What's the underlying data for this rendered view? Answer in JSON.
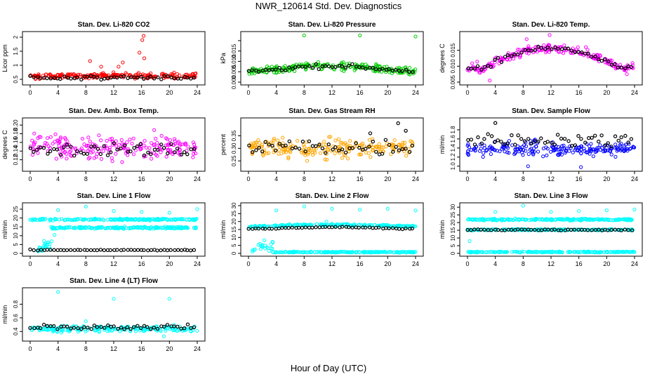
{
  "page": {
    "title": "NWR_120614  Std. Dev. Diagnostics",
    "x_axis_title": "Hour of Day (UTC)"
  },
  "colors": {
    "red": "#ff0000",
    "green": "#00cc00",
    "magenta": "#ff00ff",
    "orange": "#ffa500",
    "blue": "#0000ff",
    "cyan": "#00ffff",
    "black": "#000000"
  },
  "chart_data": [
    {
      "type": "scatter",
      "title": "Stan. Dev. Li-820 CO2",
      "ylabel": "Licor ppm",
      "xlabel": "",
      "xlim": [
        0,
        24
      ],
      "ylim": [
        0.4,
        2.1
      ],
      "x_ticks": [
        "0",
        "4",
        "8",
        "12",
        "16",
        "20",
        "24"
      ],
      "y_ticks": [
        0.5,
        1.0,
        1.5,
        2.0
      ],
      "y_tick_labels": [
        "0.5",
        "1",
        "1.5",
        "2"
      ],
      "series": [
        {
          "name": "all",
          "color": "#ff0000",
          "baseline": "flat",
          "level": 0.62,
          "noise": 0.08,
          "outliers": [
            [
              8.6,
              1.15
            ],
            [
              10.2,
              0.95
            ],
            [
              13.3,
              1.1
            ],
            [
              15.7,
              1.45
            ],
            [
              16.1,
              1.9
            ],
            [
              16.3,
              2.05
            ],
            [
              16.4,
              1.25
            ],
            [
              12.7,
              0.95
            ]
          ]
        },
        {
          "name": "hourly",
          "color": "#000000",
          "baseline": "flat",
          "level": 0.56,
          "noise": 0.05
        }
      ]
    },
    {
      "type": "scatter",
      "title": "Stan. Dev. Li-820 Pressure",
      "ylabel": "kPa",
      "xlabel": "",
      "xlim": [
        0,
        24
      ],
      "ylim": [
        0,
        0.023
      ],
      "x_ticks": [
        "0",
        "4",
        "8",
        "12",
        "16",
        "20",
        "24"
      ],
      "y_ticks": [
        0,
        0.005,
        0.01,
        0.015,
        0.02
      ],
      "y_tick_labels": [
        "0.000",
        "0.005",
        "0.010",
        "0.015",
        ""
      ],
      "series": [
        {
          "name": "all",
          "color": "#00cc00",
          "baseline": "hump",
          "level": 0.0055,
          "amp": 0.0022,
          "noise": 0.0016,
          "outliers": [
            [
              8.0,
              0.0225
            ],
            [
              16.0,
              0.0225
            ],
            [
              24.0,
              0.022
            ]
          ]
        },
        {
          "name": "hourly",
          "color": "#000000",
          "baseline": "hump",
          "level": 0.0055,
          "amp": 0.0022,
          "noise": 0.0008
        }
      ]
    },
    {
      "type": "scatter",
      "title": "Stan. Dev. Li-820 Temp.",
      "ylabel": "degrees C",
      "xlabel": "",
      "xlim": [
        0,
        24
      ],
      "ylim": [
        0.005,
        0.02
      ],
      "x_ticks": [
        "0",
        "4",
        "8",
        "12",
        "16",
        "20",
        "24"
      ],
      "y_ticks": [
        0.005,
        0.01,
        0.015
      ],
      "y_tick_labels": [
        "0.005",
        "0.010",
        "0.015"
      ],
      "series": [
        {
          "name": "all",
          "color": "#ff00ff",
          "baseline": "hump",
          "level": 0.0095,
          "amp": 0.0062,
          "noise": 0.0011,
          "outliers": [
            [
              3.2,
              0.0055
            ],
            [
              8.5,
              0.0185
            ],
            [
              11.8,
              0.0198
            ],
            [
              17.0,
              0.016
            ],
            [
              22.9,
              0.0075
            ]
          ]
        },
        {
          "name": "hourly",
          "color": "#000000",
          "baseline": "hump",
          "level": 0.0095,
          "amp": 0.0062,
          "noise": 0.0007
        }
      ]
    },
    {
      "type": "scatter",
      "title": "Stan. Dev. Amb. Box Temp.",
      "ylabel": "degrees C",
      "xlabel": "",
      "xlim": [
        0,
        24
      ],
      "ylim": [
        0.1,
        0.21
      ],
      "x_ticks": [
        "0",
        "4",
        "8",
        "12",
        "16",
        "20",
        "24"
      ],
      "y_ticks": [
        0.12,
        0.14,
        0.16,
        0.18,
        0.2
      ],
      "y_tick_labels": [
        "0.12",
        "0.14",
        "0.16",
        "0.18",
        "0.20"
      ],
      "series": [
        {
          "name": "all",
          "color": "#ff00ff",
          "baseline": "flat",
          "level": 0.148,
          "noise": 0.022
        },
        {
          "name": "hourly",
          "color": "#000000",
          "baseline": "flat",
          "level": 0.143,
          "noise": 0.013
        }
      ]
    },
    {
      "type": "scatter",
      "title": "Stan. Dev. Gas Stream RH",
      "ylabel": "percent",
      "xlabel": "",
      "xlim": [
        0,
        24
      ],
      "ylim": [
        0.22,
        0.41
      ],
      "x_ticks": [
        "0",
        "4",
        "8",
        "12",
        "16",
        "20",
        "24"
      ],
      "y_ticks": [
        0.25,
        0.3,
        0.35
      ],
      "y_tick_labels": [
        "0.25",
        "0.30",
        "0.35"
      ],
      "series": [
        {
          "name": "all",
          "color": "#ffa500",
          "baseline": "flat",
          "level": 0.3,
          "noise": 0.033
        },
        {
          "name": "hourly",
          "color": "#000000",
          "baseline": "flat",
          "level": 0.305,
          "noise": 0.03,
          "outliers": [
            [
              21.5,
              0.4
            ],
            [
              22.6,
              0.37
            ],
            [
              17.5,
              0.36
            ]
          ]
        }
      ]
    },
    {
      "type": "scatter",
      "title": "Stan. Dev. Sample Flow",
      "ylabel": "ml/min",
      "xlabel": "",
      "xlim": [
        0,
        24
      ],
      "ylim": [
        0.95,
        2.0
      ],
      "x_ticks": [
        "0",
        "4",
        "8",
        "12",
        "16",
        "20",
        "24"
      ],
      "y_ticks": [
        1.0,
        1.2,
        1.4,
        1.6,
        1.8
      ],
      "y_tick_labels": [
        "1.0",
        "1.2",
        "1.4",
        "1.6",
        "1.8"
      ],
      "series": [
        {
          "name": "all",
          "color": "#0000ff",
          "baseline": "flat",
          "level": 1.38,
          "noise": 0.12,
          "outliers": [
            [
              8.7,
              1.0
            ],
            [
              16.3,
              0.98
            ]
          ]
        },
        {
          "name": "hourly",
          "color": "#000000",
          "baseline": "flat",
          "level": 1.58,
          "noise": 0.12,
          "outliers": [
            [
              4.0,
              1.95
            ]
          ]
        }
      ]
    },
    {
      "type": "scatter",
      "title": "Stan. Dev. Line 1 Flow",
      "ylabel": "ml/min",
      "xlabel": "",
      "xlim": [
        0,
        24
      ],
      "ylim": [
        0,
        27
      ],
      "x_ticks": [
        "0",
        "4",
        "8",
        "12",
        "16",
        "20",
        "24"
      ],
      "y_ticks": [
        0,
        5,
        10,
        15,
        20,
        25
      ],
      "y_tick_labels": [
        "0",
        "5",
        "10",
        "15",
        "20",
        "25"
      ],
      "series": [
        {
          "name": "band upper",
          "color": "#00ffff",
          "baseline": "flat",
          "level": 19.2,
          "noise": 0.4
        },
        {
          "name": "band middle",
          "color": "#00ffff",
          "baseline": "flat",
          "level": 14.5,
          "noise": 0.45,
          "x_start": 3.0
        },
        {
          "name": "ramp",
          "color": "#00ffff",
          "baseline": "ramp",
          "level": 2.0,
          "noise": 1.2,
          "x_start": 1.0,
          "x_end": 3.2
        },
        {
          "name": "spikes",
          "color": "#00ffff",
          "baseline": "none",
          "outliers": [
            [
              4.0,
              24.5
            ],
            [
              8.0,
              26.5
            ],
            [
              12.0,
              24.0
            ],
            [
              16.0,
              23.5
            ],
            [
              20.0,
              23.0
            ],
            [
              24.0,
              25.0
            ],
            [
              3.5,
              10.5
            ],
            [
              2.0,
              7.0
            ]
          ]
        },
        {
          "name": "hourly",
          "color": "#000000",
          "baseline": "flat",
          "level": 1.9,
          "noise": 0.2
        }
      ]
    },
    {
      "type": "scatter",
      "title": "Stan. Dev. Line 2 Flow",
      "ylabel": "ml/min",
      "xlabel": "",
      "xlim": [
        0,
        24
      ],
      "ylim": [
        0,
        30
      ],
      "x_ticks": [
        "0",
        "4",
        "8",
        "12",
        "16",
        "20",
        "24"
      ],
      "y_ticks": [
        0,
        5,
        10,
        15,
        20,
        25,
        30
      ],
      "y_tick_labels": [
        "0",
        "5",
        "10",
        "15",
        "20",
        "25",
        "30"
      ],
      "series": [
        {
          "name": "band",
          "color": "#00ffff",
          "baseline": "hump",
          "level": 17.0,
          "amp": 1.0,
          "noise": 0.5
        },
        {
          "name": "floor",
          "color": "#00ffff",
          "baseline": "flat",
          "level": 0.8,
          "noise": 0.25,
          "x_start": 3.5
        },
        {
          "name": "ramp",
          "color": "#00ffff",
          "baseline": "ramp",
          "level": 3.0,
          "noise": 2.5,
          "x_start": 0.5,
          "x_end": 3.5
        },
        {
          "name": "spikes",
          "color": "#00ffff",
          "baseline": "none",
          "outliers": [
            [
              4.0,
              27.0
            ],
            [
              8.0,
              29.5
            ],
            [
              12.0,
              28.0
            ],
            [
              16.0,
              27.5
            ],
            [
              20.0,
              28.0
            ],
            [
              24.0,
              27.0
            ],
            [
              11.2,
              20.0
            ]
          ]
        },
        {
          "name": "hourly",
          "color": "#000000",
          "baseline": "hump",
          "level": 15.5,
          "amp": 1.0,
          "noise": 0.35
        }
      ]
    },
    {
      "type": "scatter",
      "title": "Stan. Dev. Line 3 Flow",
      "ylabel": "ml/min",
      "xlabel": "",
      "xlim": [
        0,
        24
      ],
      "ylim": [
        0,
        31
      ],
      "x_ticks": [
        "0",
        "4",
        "8",
        "12",
        "16",
        "20",
        "24"
      ],
      "y_ticks": [
        0,
        5,
        10,
        15,
        20,
        25,
        30
      ],
      "y_tick_labels": [
        "0",
        "5",
        "10",
        "15",
        "20",
        "25",
        "30"
      ],
      "series": [
        {
          "name": "band upper",
          "color": "#00ffff",
          "baseline": "flat",
          "level": 22.0,
          "noise": 0.45
        },
        {
          "name": "band middle",
          "color": "#00ffff",
          "baseline": "flat",
          "level": 15.3,
          "noise": 0.4
        },
        {
          "name": "floor",
          "color": "#00ffff",
          "baseline": "flat",
          "level": 0.9,
          "noise": 0.25
        },
        {
          "name": "spikes",
          "color": "#00ffff",
          "baseline": "none",
          "outliers": [
            [
              0.3,
              8.0
            ],
            [
              4.0,
              27.0
            ],
            [
              8.0,
              31.0
            ],
            [
              12.0,
              27.0
            ],
            [
              16.0,
              27.5
            ],
            [
              20.0,
              28.0
            ],
            [
              24.0,
              28.5
            ]
          ]
        },
        {
          "name": "hourly",
          "color": "#000000",
          "baseline": "flat",
          "level": 15.3,
          "noise": 0.3
        }
      ]
    },
    {
      "type": "scatter",
      "title": "Stan. Dev. Line 4 (LT) Flow",
      "ylabel": "ml/min",
      "xlabel": "",
      "xlim": [
        0,
        24
      ],
      "ylim": [
        0.3,
        1.0
      ],
      "x_ticks": [
        "0",
        "4",
        "8",
        "12",
        "16",
        "20",
        "24"
      ],
      "y_ticks": [
        0.4,
        0.6,
        0.8
      ],
      "y_tick_labels": [
        "0.4",
        "0.6",
        "0.8"
      ],
      "series": [
        {
          "name": "all",
          "color": "#00ffff",
          "baseline": "flat",
          "level": 0.44,
          "noise": 0.035,
          "outliers": [
            [
              4.0,
              0.98
            ],
            [
              12.0,
              0.88
            ],
            [
              20.0,
              0.88
            ],
            [
              8.0,
              0.55
            ],
            [
              19.2,
              0.33
            ]
          ]
        },
        {
          "name": "hourly",
          "color": "#000000",
          "baseline": "flat",
          "level": 0.46,
          "noise": 0.03
        }
      ]
    }
  ]
}
